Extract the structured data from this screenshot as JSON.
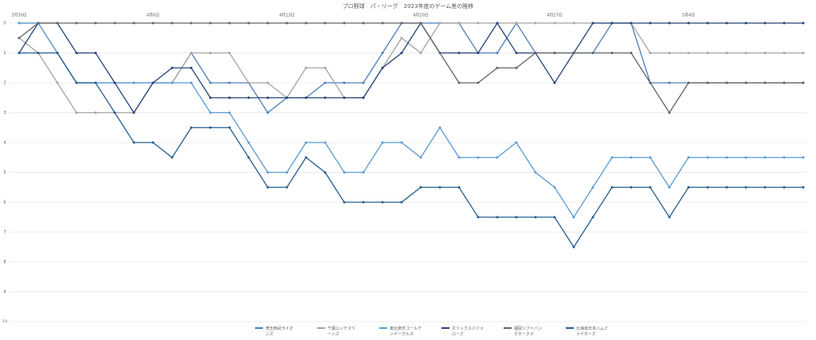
{
  "chart_data": {
    "type": "line",
    "title": "プロ野球　パ・リーグ　2023年度のゲーム差の推移",
    "categories": [
      "3月30日",
      null,
      null,
      null,
      null,
      null,
      null,
      "4月6日",
      null,
      null,
      null,
      null,
      null,
      null,
      "4月13日",
      null,
      null,
      null,
      null,
      null,
      null,
      "4月20日",
      null,
      null,
      null,
      null,
      null,
      null,
      "4月27日",
      null,
      null,
      null,
      null,
      null,
      null,
      "5月4日",
      null,
      null,
      null,
      null,
      null,
      null
    ],
    "ylim": [
      0,
      10
    ],
    "yticks": [
      0,
      1,
      2,
      3,
      4,
      5,
      6,
      7,
      8,
      9,
      10
    ],
    "y_inverted": true,
    "grid": true,
    "legend": "bottom",
    "series": [
      {
        "name": "埼玉西武ライオンズ",
        "color": "#4a7ebb",
        "values": [
          0,
          0,
          1,
          2,
          2,
          2,
          2,
          2,
          2,
          1,
          2,
          2,
          2,
          3,
          2.5,
          2.5,
          2,
          2,
          2,
          1,
          0,
          0,
          0,
          0,
          1,
          1,
          0,
          1,
          1,
          1,
          1,
          0,
          0,
          2,
          2,
          2,
          2,
          2,
          2,
          2,
          2,
          2
        ]
      },
      {
        "name": "千葉ロッテマリーンズ",
        "color": "#a5a5a5",
        "values": [
          0.5,
          1,
          2,
          3,
          3,
          3,
          3,
          2,
          2,
          1,
          1,
          1,
          2,
          2,
          2.5,
          1.5,
          1.5,
          2.5,
          2.5,
          1.5,
          0.5,
          1,
          0,
          0,
          0,
          0,
          0,
          0,
          0,
          0,
          0,
          0,
          0,
          1,
          1,
          1,
          1,
          1,
          1,
          1,
          1,
          1
        ]
      },
      {
        "name": "東北楽天ゴールデンイーグルス",
        "color": "#5b9bd5",
        "values": [
          0,
          0,
          1,
          2,
          2,
          2,
          2,
          2,
          2,
          2,
          3,
          3,
          4,
          5,
          5,
          4,
          4,
          5,
          5,
          4,
          4,
          4.5,
          3.5,
          4.5,
          4.5,
          4.5,
          4,
          5,
          5.5,
          6.5,
          5.5,
          4.5,
          4.5,
          4.5,
          5.5,
          4.5,
          4.5,
          4.5,
          4.5,
          4.5,
          4.5,
          4.5
        ]
      },
      {
        "name": "オリックスバファローズ",
        "color": "#264478",
        "values": [
          1,
          0,
          0,
          1,
          1,
          2,
          3,
          2,
          1.5,
          1.5,
          2.5,
          2.5,
          2.5,
          2.5,
          2.5,
          2.5,
          2.5,
          2.5,
          2.5,
          1.5,
          1,
          0,
          1,
          1,
          1,
          0,
          1,
          1,
          2,
          1,
          0,
          0,
          0,
          0,
          0,
          0,
          0,
          0,
          0,
          0,
          0,
          0
        ]
      },
      {
        "name": "福岡ソフトバンクホークス",
        "color": "#636363",
        "values": [
          0.5,
          0,
          0,
          0,
          0,
          0,
          0,
          0,
          0,
          0,
          0,
          0,
          0,
          0,
          0,
          0,
          0,
          0,
          0,
          0,
          0,
          0,
          1,
          2,
          2,
          1.5,
          1.5,
          1,
          1,
          1,
          1,
          1,
          1,
          2,
          3,
          2,
          2,
          2,
          2,
          2,
          2,
          2
        ]
      },
      {
        "name": "北海道日本ハムファイターズ",
        "color": "#255e91",
        "values": [
          1,
          1,
          1,
          2,
          2,
          3,
          4,
          4,
          4.5,
          3.5,
          3.5,
          3.5,
          4.5,
          5.5,
          5.5,
          4.5,
          5,
          6,
          6,
          6,
          6,
          5.5,
          5.5,
          5.5,
          6.5,
          6.5,
          6.5,
          6.5,
          6.5,
          7.5,
          6.5,
          5.5,
          5.5,
          5.5,
          6.5,
          5.5,
          5.5,
          5.5,
          5.5,
          5.5,
          5.5,
          5.5
        ]
      }
    ]
  }
}
